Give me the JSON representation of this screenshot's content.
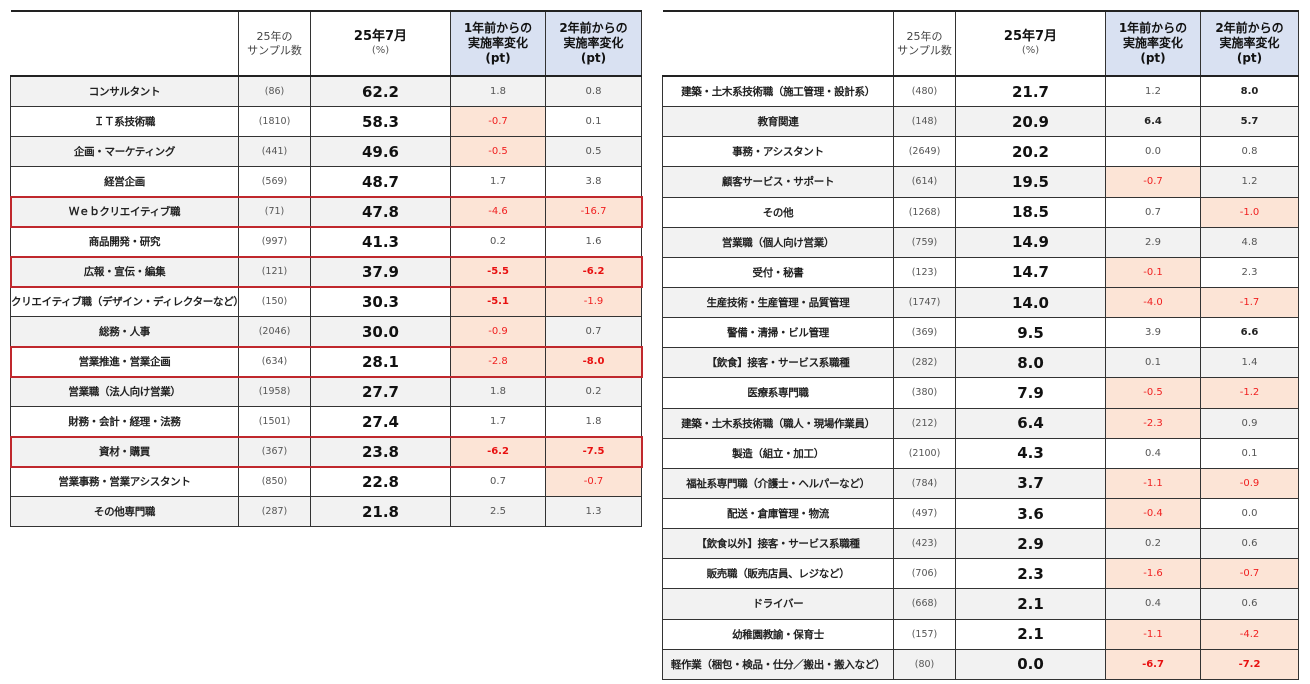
{
  "header": {
    "sample_label": "25年の\nサンプル数",
    "month_label": "25年7月",
    "month_unit": "(%)",
    "change1_label": "1年前からの\n実施率変化\n(pt)",
    "change2_label": "2年前からの\n実施率変化\n(pt)"
  },
  "colors": {
    "negative_text": "#f02020",
    "negative_bg": "#fce4d6",
    "header_bg": "#d9e1f2",
    "highlight_border": "#c0282d",
    "stripe": "#f2f2f2"
  },
  "left_table": [
    {
      "label": "コンサルタント",
      "n": "(86)",
      "value": "62.2",
      "d1": "1.8",
      "d2": "0.8"
    },
    {
      "label": "ＩＴ系技術職",
      "n": "(1810)",
      "value": "58.3",
      "d1": "-0.7",
      "d2": "0.1"
    },
    {
      "label": "企画・マーケティング",
      "n": "(441)",
      "value": "49.6",
      "d1": "-0.5",
      "d2": "0.5"
    },
    {
      "label": "経営企画",
      "n": "(569)",
      "value": "48.7",
      "d1": "1.7",
      "d2": "3.8"
    },
    {
      "label": "Ｗｅｂクリエイティブ職",
      "n": "(71)",
      "value": "47.8",
      "d1": "-4.6",
      "d2": "-16.7",
      "highlighted": true
    },
    {
      "label": "商品開発・研究",
      "n": "(997)",
      "value": "41.3",
      "d1": "0.2",
      "d2": "1.6"
    },
    {
      "label": "広報・宣伝・編集",
      "n": "(121)",
      "value": "37.9",
      "d1": "-5.5",
      "d2": "-6.2",
      "highlighted": true,
      "bold1": true,
      "bold2": true
    },
    {
      "label": "クリエイティブ職（デザイン・ディレクターなど）",
      "n": "(150)",
      "value": "30.3",
      "d1": "-5.1",
      "d2": "-1.9",
      "bold1": true
    },
    {
      "label": "総務・人事",
      "n": "(2046)",
      "value": "30.0",
      "d1": "-0.9",
      "d2": "0.7"
    },
    {
      "label": "営業推進・営業企画",
      "n": "(634)",
      "value": "28.1",
      "d1": "-2.8",
      "d2": "-8.0",
      "highlighted": true,
      "bold2": true
    },
    {
      "label": "営業職（法人向け営業）",
      "n": "(1958)",
      "value": "27.7",
      "d1": "1.8",
      "d2": "0.2"
    },
    {
      "label": "財務・会計・経理・法務",
      "n": "(1501)",
      "value": "27.4",
      "d1": "1.7",
      "d2": "1.8"
    },
    {
      "label": "資材・購買",
      "n": "(367)",
      "value": "23.8",
      "d1": "-6.2",
      "d2": "-7.5",
      "highlighted": true,
      "bold1": true,
      "bold2": true
    },
    {
      "label": "営業事務・営業アシスタント",
      "n": "(850)",
      "value": "22.8",
      "d1": "0.7",
      "d2": "-0.7"
    },
    {
      "label": "その他専門職",
      "n": "(287)",
      "value": "21.8",
      "d1": "2.5",
      "d2": "1.3"
    }
  ],
  "right_table": [
    {
      "label": "建築・土木系技術職（施工管理・設計系）",
      "n": "(480)",
      "value": "21.7",
      "d1": "1.2",
      "d2": "8.0",
      "bold2": true
    },
    {
      "label": "教育関連",
      "n": "(148)",
      "value": "20.9",
      "d1": "6.4",
      "d2": "5.7",
      "bold1": true,
      "bold2": true
    },
    {
      "label": "事務・アシスタント",
      "n": "(2649)",
      "value": "20.2",
      "d1": "0.0",
      "d2": "0.8"
    },
    {
      "label": "顧客サービス・サポート",
      "n": "(614)",
      "value": "19.5",
      "d1": "-0.7",
      "d2": "1.2"
    },
    {
      "label": "その他",
      "n": "(1268)",
      "value": "18.5",
      "d1": "0.7",
      "d2": "-1.0"
    },
    {
      "label": "営業職（個人向け営業）",
      "n": "(759)",
      "value": "14.9",
      "d1": "2.9",
      "d2": "4.8"
    },
    {
      "label": "受付・秘書",
      "n": "(123)",
      "value": "14.7",
      "d1": "-0.1",
      "d2": "2.3"
    },
    {
      "label": "生産技術・生産管理・品質管理",
      "n": "(1747)",
      "value": "14.0",
      "d1": "-4.0",
      "d2": "-1.7"
    },
    {
      "label": "警備・清掃・ビル管理",
      "n": "(369)",
      "value": "9.5",
      "d1": "3.9",
      "d2": "6.6",
      "bold2": true
    },
    {
      "label": "【飲食】接客・サービス系職種",
      "n": "(282)",
      "value": "8.0",
      "d1": "0.1",
      "d2": "1.4"
    },
    {
      "label": "医療系専門職",
      "n": "(380)",
      "value": "7.9",
      "d1": "-0.5",
      "d2": "-1.2"
    },
    {
      "label": "建築・土木系技術職（職人・現場作業員）",
      "n": "(212)",
      "value": "6.4",
      "d1": "-2.3",
      "d2": "0.9"
    },
    {
      "label": "製造（組立・加工）",
      "n": "(2100)",
      "value": "4.3",
      "d1": "0.4",
      "d2": "0.1"
    },
    {
      "label": "福祉系専門職（介護士・ヘルパーなど）",
      "n": "(784)",
      "value": "3.7",
      "d1": "-1.1",
      "d2": "-0.9"
    },
    {
      "label": "配送・倉庫管理・物流",
      "n": "(497)",
      "value": "3.6",
      "d1": "-0.4",
      "d2": "0.0"
    },
    {
      "label": "【飲食以外】接客・サービス系職種",
      "n": "(423)",
      "value": "2.9",
      "d1": "0.2",
      "d2": "0.6"
    },
    {
      "label": "販売職（販売店員、レジなど）",
      "n": "(706)",
      "value": "2.3",
      "d1": "-1.6",
      "d2": "-0.7"
    },
    {
      "label": "ドライバー",
      "n": "(668)",
      "value": "2.1",
      "d1": "0.4",
      "d2": "0.6"
    },
    {
      "label": "幼稚園教諭・保育士",
      "n": "(157)",
      "value": "2.1",
      "d1": "-1.1",
      "d2": "-4.2"
    },
    {
      "label": "軽作業（梱包・検品・仕分／搬出・搬入など）",
      "n": "(80)",
      "value": "0.0",
      "d1": "-6.7",
      "d2": "-7.2",
      "bold1": true,
      "bold2": true
    }
  ]
}
